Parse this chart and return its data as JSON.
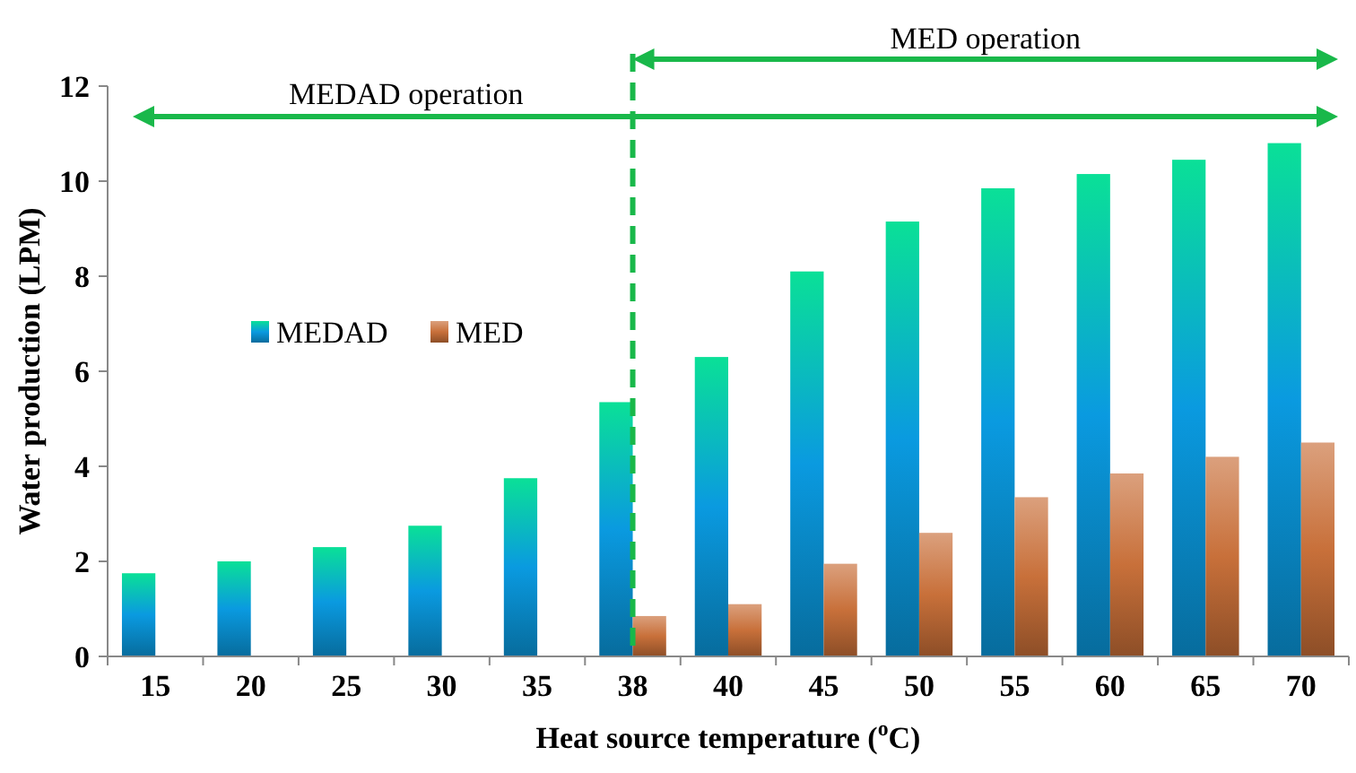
{
  "chart_data": {
    "type": "bar",
    "xlabel": "Heat source temperature ($^{o}$C)",
    "ylabel": "Water production (LPM)",
    "categories": [
      "15",
      "20",
      "25",
      "30",
      "35",
      "38",
      "40",
      "45",
      "50",
      "55",
      "60",
      "65",
      "70"
    ],
    "series": [
      {
        "name": "MEDAD",
        "color": "#0a9ae0",
        "values": [
          1.75,
          2.0,
          2.3,
          2.75,
          3.75,
          5.35,
          6.3,
          8.1,
          9.15,
          9.85,
          10.15,
          10.45,
          10.8
        ]
      },
      {
        "name": "MED",
        "color": "#c8703a",
        "values": [
          null,
          null,
          null,
          null,
          null,
          0.85,
          1.1,
          1.95,
          2.6,
          3.35,
          3.85,
          4.2,
          4.5
        ]
      }
    ],
    "ylim": [
      0,
      12
    ],
    "yticks": [
      0,
      2,
      4,
      6,
      8,
      10,
      12
    ],
    "grid": false,
    "legend": "left",
    "ref_lines": [
      {
        "axis": "x",
        "value": "38",
        "color": "#19b84a",
        "line_style": "dashed"
      }
    ],
    "annotations": [
      "MEDAD operation",
      "MED operation"
    ]
  }
}
